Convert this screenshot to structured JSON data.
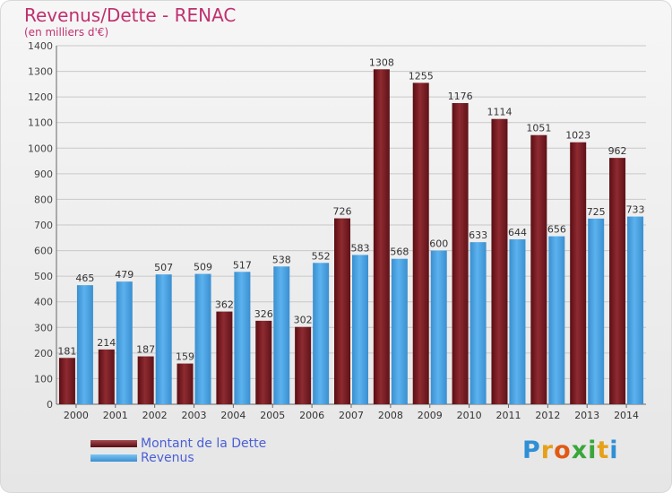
{
  "title": "Revenus/Dette - RENAC",
  "subtitle": "(en milliers d'€)",
  "legend": {
    "debt_label": "Montant de la Dette",
    "revenue_label": "Revenus"
  },
  "logo": {
    "letters": [
      "P",
      "r",
      "o",
      "x",
      "i",
      "t",
      "i"
    ],
    "colors": [
      "#2f8fd6",
      "#e6a118",
      "#e15a13",
      "#3aa63a",
      "#3aa63a",
      "#e6a118",
      "#2f8fd6"
    ]
  },
  "colors": {
    "debt": "#7a2026",
    "revenue": "#4fa6e4",
    "title": "#c0306f",
    "grid": "#c8c8c8"
  },
  "chart_data": {
    "type": "bar",
    "categories": [
      "2000",
      "2001",
      "2002",
      "2003",
      "2004",
      "2005",
      "2006",
      "2007",
      "2008",
      "2009",
      "2010",
      "2011",
      "2012",
      "2013",
      "2014"
    ],
    "series": [
      {
        "name": "Montant de la Dette",
        "values": [
          181,
          214,
          187,
          159,
          362,
          326,
          302,
          726,
          1308,
          1255,
          1176,
          1114,
          1051,
          1023,
          962
        ]
      },
      {
        "name": "Revenus",
        "values": [
          465,
          479,
          507,
          509,
          517,
          538,
          552,
          583,
          568,
          600,
          633,
          644,
          656,
          725,
          733
        ]
      }
    ],
    "ylim": [
      0,
      1400
    ],
    "yticks": [
      0,
      100,
      200,
      300,
      400,
      500,
      600,
      700,
      800,
      900,
      1000,
      1100,
      1200,
      1300,
      1400
    ],
    "grid": true
  }
}
